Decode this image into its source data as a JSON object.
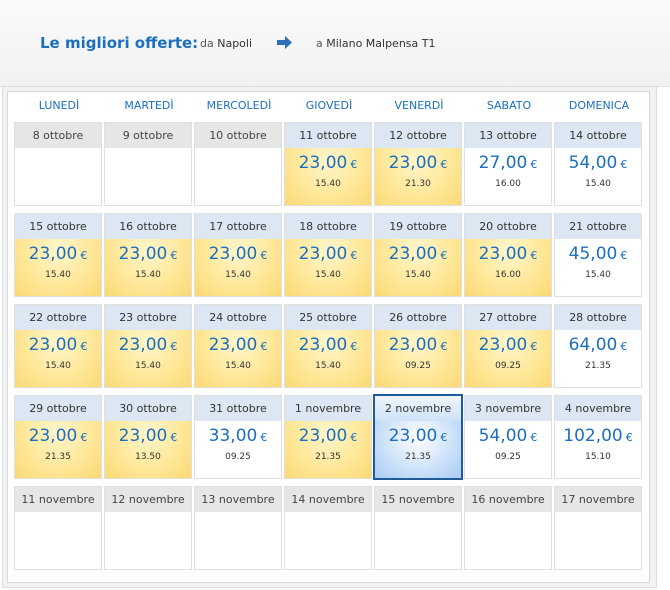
{
  "header": {
    "title": "Le migliori offerte:",
    "from_label": "da",
    "from_city": "Napoli",
    "to_label": "a",
    "to_city": "Milano Malpensa T1",
    "arrow_icon": "arrow-right-icon",
    "accent_color": "#1b6fbe"
  },
  "calendar": {
    "weekdays": [
      "LUNEDÌ",
      "MARTEDÌ",
      "MERCOLEDÌ",
      "GIOVEDÌ",
      "VENERDÌ",
      "SABATO",
      "DOMENICA"
    ],
    "currency": "€",
    "weeks": [
      [
        {
          "date": "8 ottobre",
          "state": "past"
        },
        {
          "date": "9 ottobre",
          "state": "past"
        },
        {
          "date": "10 ottobre",
          "state": "past"
        },
        {
          "date": "11 ottobre",
          "price": "23,00",
          "time": "15.40",
          "state": "offer"
        },
        {
          "date": "12 ottobre",
          "price": "23,00",
          "time": "21.30",
          "state": "offer"
        },
        {
          "date": "13 ottobre",
          "price": "27,00",
          "time": "16.00",
          "state": "normal"
        },
        {
          "date": "14 ottobre",
          "price": "54,00",
          "time": "15.40",
          "state": "normal"
        }
      ],
      [
        {
          "date": "15 ottobre",
          "price": "23,00",
          "time": "15.40",
          "state": "offer"
        },
        {
          "date": "16 ottobre",
          "price": "23,00",
          "time": "15.40",
          "state": "offer"
        },
        {
          "date": "17 ottobre",
          "price": "23,00",
          "time": "15.40",
          "state": "offer"
        },
        {
          "date": "18 ottobre",
          "price": "23,00",
          "time": "15.40",
          "state": "offer"
        },
        {
          "date": "19 ottobre",
          "price": "23,00",
          "time": "15.40",
          "state": "offer"
        },
        {
          "date": "20 ottobre",
          "price": "23,00",
          "time": "16.00",
          "state": "offer"
        },
        {
          "date": "21 ottobre",
          "price": "45,00",
          "time": "15.40",
          "state": "normal"
        }
      ],
      [
        {
          "date": "22 ottobre",
          "price": "23,00",
          "time": "15.40",
          "state": "offer"
        },
        {
          "date": "23 ottobre",
          "price": "23,00",
          "time": "15.40",
          "state": "offer"
        },
        {
          "date": "24 ottobre",
          "price": "23,00",
          "time": "15.40",
          "state": "offer"
        },
        {
          "date": "25 ottobre",
          "price": "23,00",
          "time": "15.40",
          "state": "offer"
        },
        {
          "date": "26 ottobre",
          "price": "23,00",
          "time": "09.25",
          "state": "offer"
        },
        {
          "date": "27 ottobre",
          "price": "23,00",
          "time": "09.25",
          "state": "offer"
        },
        {
          "date": "28 ottobre",
          "price": "64,00",
          "time": "21.35",
          "state": "normal"
        }
      ],
      [
        {
          "date": "29 ottobre",
          "price": "23,00",
          "time": "21.35",
          "state": "offer"
        },
        {
          "date": "30 ottobre",
          "price": "23,00",
          "time": "13.50",
          "state": "offer"
        },
        {
          "date": "31 ottobre",
          "price": "33,00",
          "time": "09.25",
          "state": "normal"
        },
        {
          "date": "1 novembre",
          "price": "23,00",
          "time": "21.35",
          "state": "offer"
        },
        {
          "date": "2 novembre",
          "price": "23,00",
          "time": "21.35",
          "state": "selected"
        },
        {
          "date": "3 novembre",
          "price": "54,00",
          "time": "09.25",
          "state": "normal"
        },
        {
          "date": "4 novembre",
          "price": "102,00",
          "time": "15.10",
          "state": "normal"
        }
      ],
      [
        {
          "date": "11 novembre",
          "state": "past"
        },
        {
          "date": "12 novembre",
          "state": "past"
        },
        {
          "date": "13 novembre",
          "state": "past"
        },
        {
          "date": "14 novembre",
          "state": "past"
        },
        {
          "date": "15 novembre",
          "state": "past"
        },
        {
          "date": "16 novembre",
          "state": "past"
        },
        {
          "date": "17 novembre",
          "state": "past"
        }
      ]
    ]
  }
}
